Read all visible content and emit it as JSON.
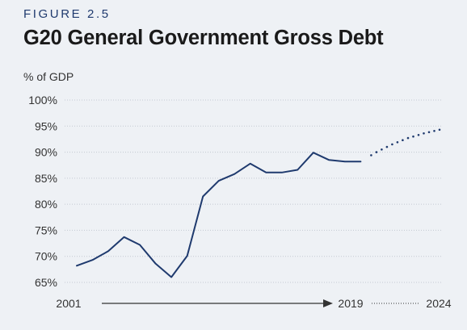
{
  "figure": {
    "label": "FIGURE 2.5",
    "title": "G20 General Government Gross Debt"
  },
  "chart_data": {
    "type": "line",
    "title": "G20 General Government Gross Debt",
    "ylabel": "% of GDP",
    "xlabel": "",
    "ylim": [
      65,
      100
    ],
    "yticks": [
      65,
      70,
      75,
      80,
      85,
      90,
      95,
      100
    ],
    "ytick_labels": [
      "65%",
      "70%",
      "75%",
      "80%",
      "85%",
      "90%",
      "95%",
      "100%"
    ],
    "xlim": [
      2001,
      2024
    ],
    "xticks": [
      2001,
      2019,
      2024
    ],
    "xtick_labels": [
      "2001",
      "2019",
      "2024"
    ],
    "grid": "horizontal-dotted",
    "legend": "none",
    "series": [
      {
        "style": "solid",
        "color": "#1f3a6e",
        "x": [
          2001,
          2002,
          2003,
          2004,
          2005,
          2006,
          2007,
          2008,
          2009,
          2010,
          2011,
          2012,
          2013,
          2014,
          2015,
          2016,
          2017,
          2018,
          2019
        ],
        "y": [
          68.2,
          69.3,
          71.0,
          73.7,
          72.2,
          68.6,
          66.0,
          70.1,
          81.5,
          84.5,
          85.8,
          87.8,
          86.1,
          86.1,
          86.6,
          89.9,
          88.5,
          88.2,
          88.2
        ]
      },
      {
        "style": "dotted",
        "color": "#1f3a6e",
        "x": [
          2019,
          2020,
          2021,
          2022,
          2023,
          2024
        ],
        "y": [
          88.2,
          90.0,
          91.5,
          92.7,
          93.6,
          94.3
        ]
      }
    ],
    "colors": {
      "line": "#1f3a6e",
      "grid": "#c4c9d2",
      "axis_arrow": "#333333"
    }
  }
}
